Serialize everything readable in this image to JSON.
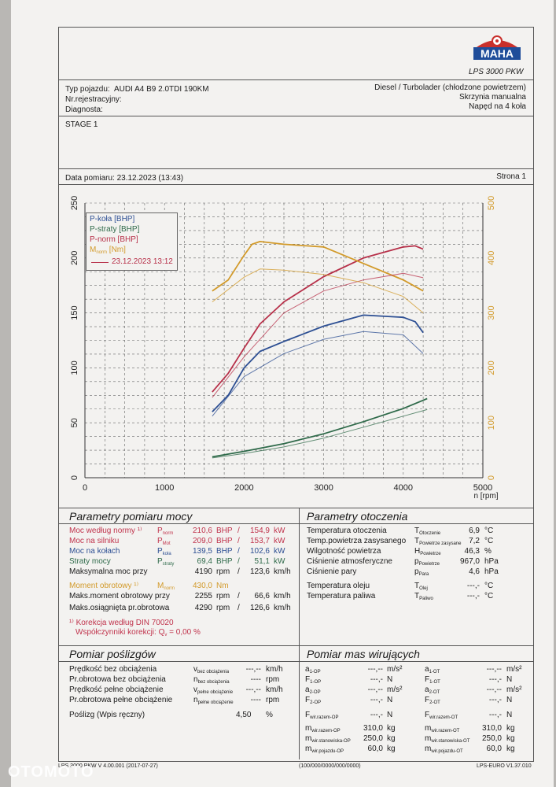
{
  "header": {
    "logo_text": "MAHA",
    "model": "LPS 3000 PKW",
    "vehicle_type_label": "Typ pojazdu:",
    "vehicle_type_value": "AUDI A4 B9 2.0TDI 190KM",
    "reg_label": "Nr.rejestracyjny:",
    "diag_label": "Diagnosta:",
    "engine_info": "Diesel / Turbolader (chłodzone powietrzem)",
    "gearbox": "Skrzynia manualna",
    "drive": "Napęd na 4 koła",
    "stage": "STAGE 1",
    "date_label": "Data pomiaru: 23.12.2023 (13:43)",
    "page_label": "Strona 1"
  },
  "legend": {
    "items": [
      {
        "label": "P-koła [BHP]",
        "color": "#2d4f93"
      },
      {
        "label": "P-straty [BHP]",
        "color": "#2f6a4a"
      },
      {
        "label": "P-norm [BHP]",
        "color": "#b73049"
      },
      {
        "label": "M",
        "sub": "norm",
        "suffix": " [Nm]",
        "color": "#d29a2a"
      }
    ],
    "date_entry": "23.12.2023 13:12",
    "date_color": "#b73049"
  },
  "chart_data": {
    "type": "line",
    "xlabel": "n [rpm]",
    "xlim": [
      0,
      5000
    ],
    "ylim_left": [
      0,
      250
    ],
    "ylim_right": [
      0,
      500
    ],
    "x_ticks": [
      0,
      1000,
      2000,
      3000,
      4000,
      5000
    ],
    "y_ticks_left": [
      0,
      50,
      100,
      150,
      200,
      250
    ],
    "y_ticks_right": [
      0,
      100,
      200,
      300,
      400,
      500
    ],
    "grid": true,
    "legend_position": "top-left",
    "series": [
      {
        "name": "P-norm [BHP]",
        "axis": "left",
        "color": "#b73049",
        "x": [
          1600,
          1800,
          2000,
          2200,
          2500,
          3000,
          3500,
          4000,
          4150,
          4250
        ],
        "y": [
          78,
          95,
          118,
          140,
          160,
          183,
          200,
          210,
          211,
          208
        ]
      },
      {
        "name": "P-koła [BHP]",
        "axis": "left",
        "color": "#2d4f93",
        "x": [
          1600,
          1800,
          2000,
          2200,
          2500,
          3000,
          3500,
          4000,
          4150,
          4250
        ],
        "y": [
          60,
          75,
          100,
          115,
          124,
          138,
          148,
          146,
          142,
          132
        ]
      },
      {
        "name": "P-straty [BHP]",
        "axis": "left",
        "color": "#2f6a4a",
        "x": [
          1600,
          2000,
          2500,
          3000,
          3500,
          4000,
          4300
        ],
        "y": [
          19,
          24,
          31,
          40,
          51,
          63,
          72
        ]
      },
      {
        "name": "M norm [Nm]",
        "axis": "right",
        "color": "#d29a2a",
        "x": [
          1600,
          1800,
          2000,
          2100,
          2200,
          2500,
          3000,
          3500,
          4000,
          4250
        ],
        "y": [
          340,
          360,
          405,
          425,
          430,
          425,
          420,
          390,
          360,
          340
        ]
      },
      {
        "name": "P-norm (poprzedni)",
        "axis": "left",
        "color": "#b73049",
        "x": [
          1600,
          2000,
          2500,
          3000,
          3500,
          4000,
          4250
        ],
        "y": [
          73,
          110,
          150,
          170,
          180,
          186,
          182
        ]
      },
      {
        "name": "P-koła (poprzedni)",
        "axis": "left",
        "color": "#2d4f93",
        "x": [
          1600,
          2000,
          2500,
          3000,
          3500,
          4000,
          4250
        ],
        "y": [
          56,
          92,
          113,
          126,
          133,
          130,
          113
        ]
      },
      {
        "name": "P-straty (poprzedni)",
        "axis": "left",
        "color": "#2f6a4a",
        "x": [
          1600,
          2000,
          2500,
          3000,
          3500,
          4000,
          4300
        ],
        "y": [
          18,
          22,
          28,
          36,
          46,
          56,
          62
        ]
      },
      {
        "name": "M norm (poprzedni)",
        "axis": "right",
        "color": "#d29a2a",
        "x": [
          1600,
          2000,
          2200,
          2500,
          3000,
          3500,
          4000,
          4250
        ],
        "y": [
          320,
          365,
          380,
          378,
          370,
          355,
          330,
          300
        ]
      }
    ]
  },
  "params_moc": {
    "title": "Parametry pomiaru mocy",
    "rows": [
      {
        "label": "Moc według normy ¹⁾",
        "sym": "P",
        "sub": "norm",
        "v1": "210,6",
        "u1": "BHP",
        "v2": "154,9",
        "u2": "kW",
        "color": "#c0334c"
      },
      {
        "label": "Moc na silniku",
        "sym": "P",
        "sub": "Mot",
        "v1": "209,0",
        "u1": "BHP",
        "v2": "153,7",
        "u2": "kW",
        "color": "#c0334c"
      },
      {
        "label": "Moc na kołach",
        "sym": "P",
        "sub": "koła",
        "v1": "139,5",
        "u1": "BHP",
        "v2": "102,6",
        "u2": "kW",
        "color": "#2d4f93"
      },
      {
        "label": "Straty mocy",
        "sym": "P",
        "sub": "straty",
        "v1": "69,4",
        "u1": "BHP",
        "v2": "51,1",
        "u2": "kW",
        "color": "#2f6a4a"
      },
      {
        "label": "Maksymalna moc przy",
        "sym": "",
        "sub": "",
        "v1": "4190",
        "u1": "rpm",
        "v2": "123,6",
        "u2": "km/h",
        "color": "#1a1a1a"
      },
      {
        "label": "Moment obrotowy ¹⁾",
        "sym": "M",
        "sub": "norm",
        "v1": "430,0",
        "u1": "Nm",
        "v2": "",
        "u2": "",
        "color": "#d29a2a"
      },
      {
        "label": "Maks.moment obrotowy przy",
        "sym": "",
        "sub": "",
        "v1": "2255",
        "u1": "rpm",
        "v2": "66,6",
        "u2": "km/h",
        "color": "#1a1a1a"
      },
      {
        "label": "Maks.osiągnięta pr.obrotowa",
        "sym": "",
        "sub": "",
        "v1": "4290",
        "u1": "rpm",
        "v2": "126,6",
        "u2": "km/h",
        "color": "#1a1a1a"
      }
    ],
    "note1": "¹⁾ Korekcja według DIN 70020",
    "note2": "Współczynniki korekcji: Q",
    "note2_sub": "v",
    "note2_val": " =    0,00 %"
  },
  "params_otoczenia": {
    "title": "Parametry otoczenia",
    "rows": [
      {
        "label": "Temperatura otoczenia",
        "sym": "T",
        "sub": "Otoczenie",
        "val": "6,9",
        "unit": "°C"
      },
      {
        "label": "Temp.powietrza zasysanego",
        "sym": "T",
        "sub": "Powietrze zasysane",
        "val": "7,2",
        "unit": "°C"
      },
      {
        "label": "Wilgotność powietrza",
        "sym": "H",
        "sub": "Powietrze",
        "val": "46,3",
        "unit": "%"
      },
      {
        "label": "Ciśnienie atmosferyczne",
        "sym": "p",
        "sub": "Powietrze",
        "val": "967,0",
        "unit": "hPa"
      },
      {
        "label": "Ciśnienie pary",
        "sym": "p",
        "sub": "Para",
        "val": "4,6",
        "unit": "hPa"
      },
      {
        "label": "Temperatura oleju",
        "sym": "T",
        "sub": "Olej",
        "val": "---,-",
        "unit": "°C"
      },
      {
        "label": "Temperatura paliwa",
        "sym": "T",
        "sub": "Paliwo",
        "val": "---,-",
        "unit": "°C"
      }
    ]
  },
  "poslizg": {
    "title": "Pomiar poślizgów",
    "rows": [
      {
        "label": "Prędkość bez obciążenia",
        "sym": "v",
        "sub": "bez obciążenia",
        "val": "---,--",
        "unit": "km/h"
      },
      {
        "label": "Pr.obrotowa bez obciążenia",
        "sym": "n",
        "sub": "bez obciążenia",
        "val": "----",
        "unit": "rpm"
      },
      {
        "label": "Prędkość pełne obciążenie",
        "sym": "v",
        "sub": "pełne obciążenie",
        "val": "---,--",
        "unit": "km/h"
      },
      {
        "label": "Pr.obrotowa pełne obciążenie",
        "sym": "n",
        "sub": "pełne obciążenie",
        "val": "----",
        "unit": "rpm"
      }
    ],
    "slip_label": "Poślizg (Wpis ręczny)",
    "slip_val": "4,50",
    "slip_unit": "%"
  },
  "masy": {
    "title": "Pomiar mas wirujących",
    "left": [
      {
        "sym": "a",
        "sub": "1-OP",
        "val": "---,--",
        "unit": "m/s²"
      },
      {
        "sym": "F",
        "sub": "1-OP",
        "val": "---,-",
        "unit": "N"
      },
      {
        "sym": "a",
        "sub": "2-OP",
        "val": "---,--",
        "unit": "m/s²"
      },
      {
        "sym": "F",
        "sub": "2-OP",
        "val": "---,-",
        "unit": "N"
      },
      {
        "sym": "F",
        "sub": "wir.razem-OP",
        "val": "---,-",
        "unit": "N"
      },
      {
        "sym": "m",
        "sub": "wir.razem-OP",
        "val": "310,0",
        "unit": "kg"
      },
      {
        "sym": "m",
        "sub": "wir.stanowiska-OP",
        "val": "250,0",
        "unit": "kg"
      },
      {
        "sym": "m",
        "sub": "wir.pojazdu-OP",
        "val": "60,0",
        "unit": "kg"
      }
    ],
    "right": [
      {
        "sym": "a",
        "sub": "1-OT",
        "val": "---,--",
        "unit": "m/s²"
      },
      {
        "sym": "F",
        "sub": "1-OT",
        "val": "---,-",
        "unit": "N"
      },
      {
        "sym": "a",
        "sub": "2-OT",
        "val": "---,--",
        "unit": "m/s²"
      },
      {
        "sym": "F",
        "sub": "2-OT",
        "val": "---,-",
        "unit": "N"
      },
      {
        "sym": "F",
        "sub": "wir.razem-OT",
        "val": "---,-",
        "unit": "N"
      },
      {
        "sym": "m",
        "sub": "wir.razem-OT",
        "val": "310,0",
        "unit": "kg"
      },
      {
        "sym": "m",
        "sub": "wir.stanowiska-OT",
        "val": "250,0",
        "unit": "kg"
      },
      {
        "sym": "m",
        "sub": "wir.pojazdu-OT",
        "val": "60,0",
        "unit": "kg"
      }
    ]
  },
  "footer": {
    "left": "LPS 3000 PKW V 4.00.001 (2017-07-27)",
    "center": "(100/000/0000/000/0000)",
    "right": "LPS-EURO V1.37.010"
  },
  "watermark": "OTOMOTO"
}
